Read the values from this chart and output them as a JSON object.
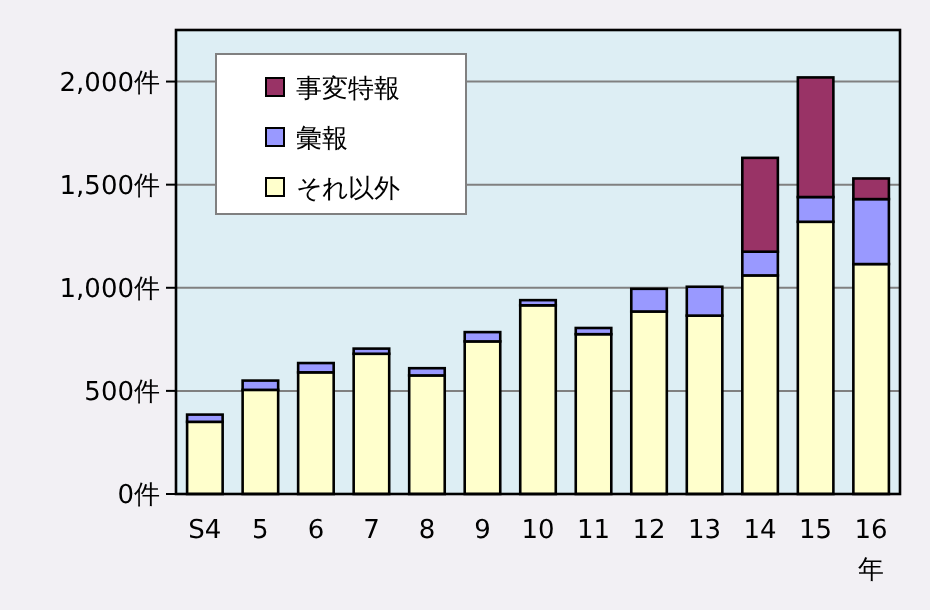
{
  "chart_data": {
    "type": "bar",
    "stacked": true,
    "categories": [
      "S4",
      "5",
      "6",
      "7",
      "8",
      "9",
      "10",
      "11",
      "12",
      "13",
      "14",
      "15",
      "16"
    ],
    "series": [
      {
        "name": "それ以外",
        "color": "#ffffcc",
        "values": [
          350,
          505,
          590,
          680,
          575,
          740,
          915,
          775,
          885,
          865,
          1060,
          1320,
          1115
        ]
      },
      {
        "name": "彙報",
        "color": "#9999ff",
        "values": [
          35,
          45,
          45,
          25,
          35,
          45,
          25,
          30,
          110,
          140,
          115,
          120,
          315
        ]
      },
      {
        "name": "事変特報",
        "color": "#993366",
        "values": [
          null,
          null,
          null,
          null,
          null,
          null,
          null,
          null,
          null,
          null,
          455,
          580,
          100
        ]
      }
    ],
    "xlabel": "年",
    "ylim": [
      0,
      2250
    ],
    "yticks": [
      {
        "value": 0,
        "label": "0件"
      },
      {
        "value": 500,
        "label": "500件"
      },
      {
        "value": 1000,
        "label": "1,000件"
      },
      {
        "value": 1500,
        "label": "1,500件"
      },
      {
        "value": 2000,
        "label": "2,000件"
      }
    ],
    "grid": "y",
    "legend": "top left"
  }
}
